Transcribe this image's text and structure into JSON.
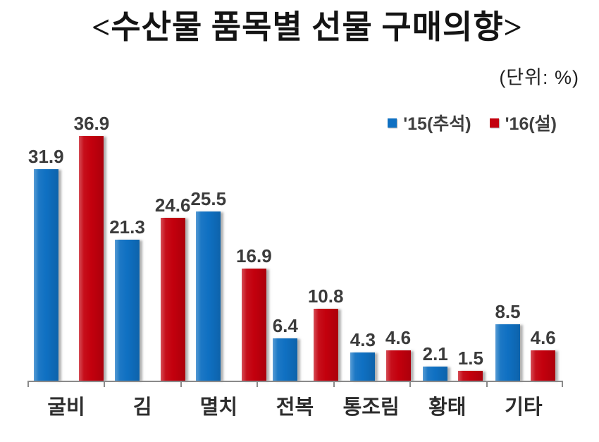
{
  "title": "<수산물 품목별 선물 구매의향>",
  "unit_label": "(단위:  %)",
  "colors": {
    "series_blue": "#0f70c2",
    "series_red": "#c3000d",
    "axis": "#8a8a8a",
    "value_text": "#3b3b3b",
    "legend_text": "#404040"
  },
  "chart_data": {
    "type": "bar",
    "title": "<수산물 품목별 선물 구매의향>",
    "unit": "%",
    "categories": [
      "굴비",
      "김",
      "멸치",
      "전복",
      "통조림",
      "황태",
      "기타"
    ],
    "series": [
      {
        "name": "'15(추석)",
        "color": "#0f70c2",
        "values": [
          31.9,
          21.3,
          25.5,
          6.4,
          4.3,
          2.1,
          8.5
        ]
      },
      {
        "name": "'16(설)",
        "color": "#c3000d",
        "values": [
          36.9,
          24.6,
          16.9,
          10.8,
          4.6,
          1.5,
          4.6
        ]
      }
    ],
    "xlabel": "",
    "ylabel": "",
    "ylim": [
      0,
      40
    ],
    "grid": false,
    "legend_position": "top-right",
    "value_labels": true
  }
}
